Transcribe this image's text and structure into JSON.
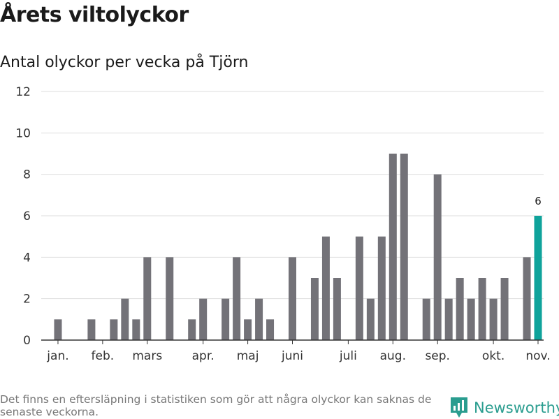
{
  "header": {
    "title": "Årets viltolyckor",
    "subtitle": "Antal olyckor per vecka på Tjörn"
  },
  "footer": {
    "note": "Det finns en eftersläpning i statistiken som gör att några olyckor kan saknas de senaste veckorna.",
    "brand": "Newsworthy",
    "brand_icon": "newsworthy-logo-icon"
  },
  "colors": {
    "bar": "#737278",
    "highlight": "#0fa39b",
    "grid": "#dedede",
    "axis": "#333333",
    "brand": "#2a9d8f"
  },
  "chart_data": {
    "type": "bar",
    "title": "Antal olyckor per vecka på Tjörn",
    "xlabel": "",
    "ylabel": "",
    "x_unit": "week",
    "ylim": [
      0,
      12
    ],
    "yticks": [
      0,
      2,
      4,
      6,
      8,
      10,
      12
    ],
    "grid": true,
    "weeks": [
      1,
      2,
      3,
      4,
      5,
      6,
      7,
      8,
      9,
      10,
      11,
      12,
      13,
      14,
      15,
      16,
      17,
      18,
      19,
      20,
      21,
      22,
      23,
      24,
      25,
      26,
      27,
      28,
      29,
      30,
      31,
      32,
      33,
      34,
      35,
      36,
      37,
      38,
      39,
      40,
      41,
      42,
      43,
      44,
      45
    ],
    "values": [
      0,
      1,
      0,
      0,
      1,
      0,
      1,
      2,
      1,
      4,
      0,
      4,
      0,
      1,
      2,
      0,
      2,
      4,
      1,
      2,
      1,
      0,
      4,
      0,
      3,
      5,
      3,
      0,
      5,
      2,
      5,
      9,
      9,
      0,
      2,
      8,
      2,
      3,
      2,
      3,
      2,
      3,
      0,
      4,
      6
    ],
    "highlight_week": 45,
    "highlight_label": "6",
    "month_ticks": [
      {
        "label": "jan.",
        "week": 2
      },
      {
        "label": "feb.",
        "week": 6
      },
      {
        "label": "mars",
        "week": 10
      },
      {
        "label": "apr.",
        "week": 15
      },
      {
        "label": "maj",
        "week": 19
      },
      {
        "label": "juni",
        "week": 23
      },
      {
        "label": "juli",
        "week": 28
      },
      {
        "label": "aug.",
        "week": 32
      },
      {
        "label": "sep.",
        "week": 36
      },
      {
        "label": "okt.",
        "week": 41
      },
      {
        "label": "nov.",
        "week": 45
      }
    ]
  }
}
